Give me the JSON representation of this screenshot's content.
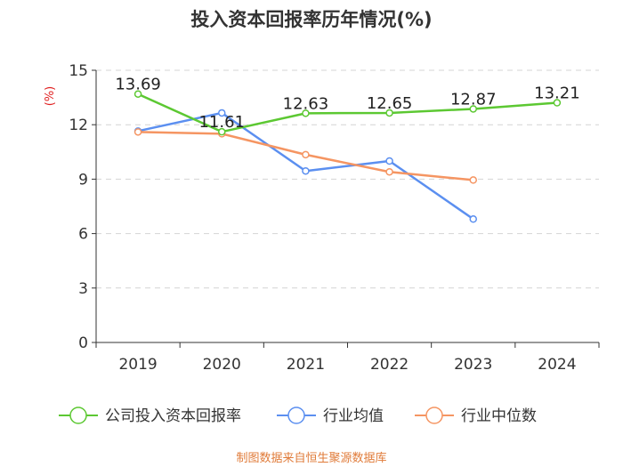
{
  "chart_data": {
    "type": "line",
    "title": "投入资本回报率历年情况(%)",
    "ylabel": "(%)",
    "xlabel": "",
    "categories": [
      "2019",
      "2020",
      "2021",
      "2022",
      "2023",
      "2024"
    ],
    "ylim": [
      0,
      15
    ],
    "yticks": [
      0,
      3,
      6,
      9,
      12,
      15
    ],
    "grid": true,
    "legend_position": "bottom",
    "series": [
      {
        "name": "公司投入资本回报率",
        "color": "#5cc832",
        "values": [
          13.69,
          11.61,
          12.63,
          12.65,
          12.87,
          13.21
        ],
        "labels": [
          "13.69",
          "11.61",
          "12.63",
          "12.65",
          "12.87",
          "13.21"
        ]
      },
      {
        "name": "行业均值",
        "color": "#5b8ff0",
        "values": [
          11.65,
          12.65,
          9.45,
          10.0,
          6.8,
          null
        ]
      },
      {
        "name": "行业中位数",
        "color": "#f59562",
        "values": [
          11.6,
          11.5,
          10.35,
          9.4,
          8.95,
          null
        ]
      }
    ]
  },
  "footer": {
    "source": "制图数据来自恒生聚源数据库"
  }
}
